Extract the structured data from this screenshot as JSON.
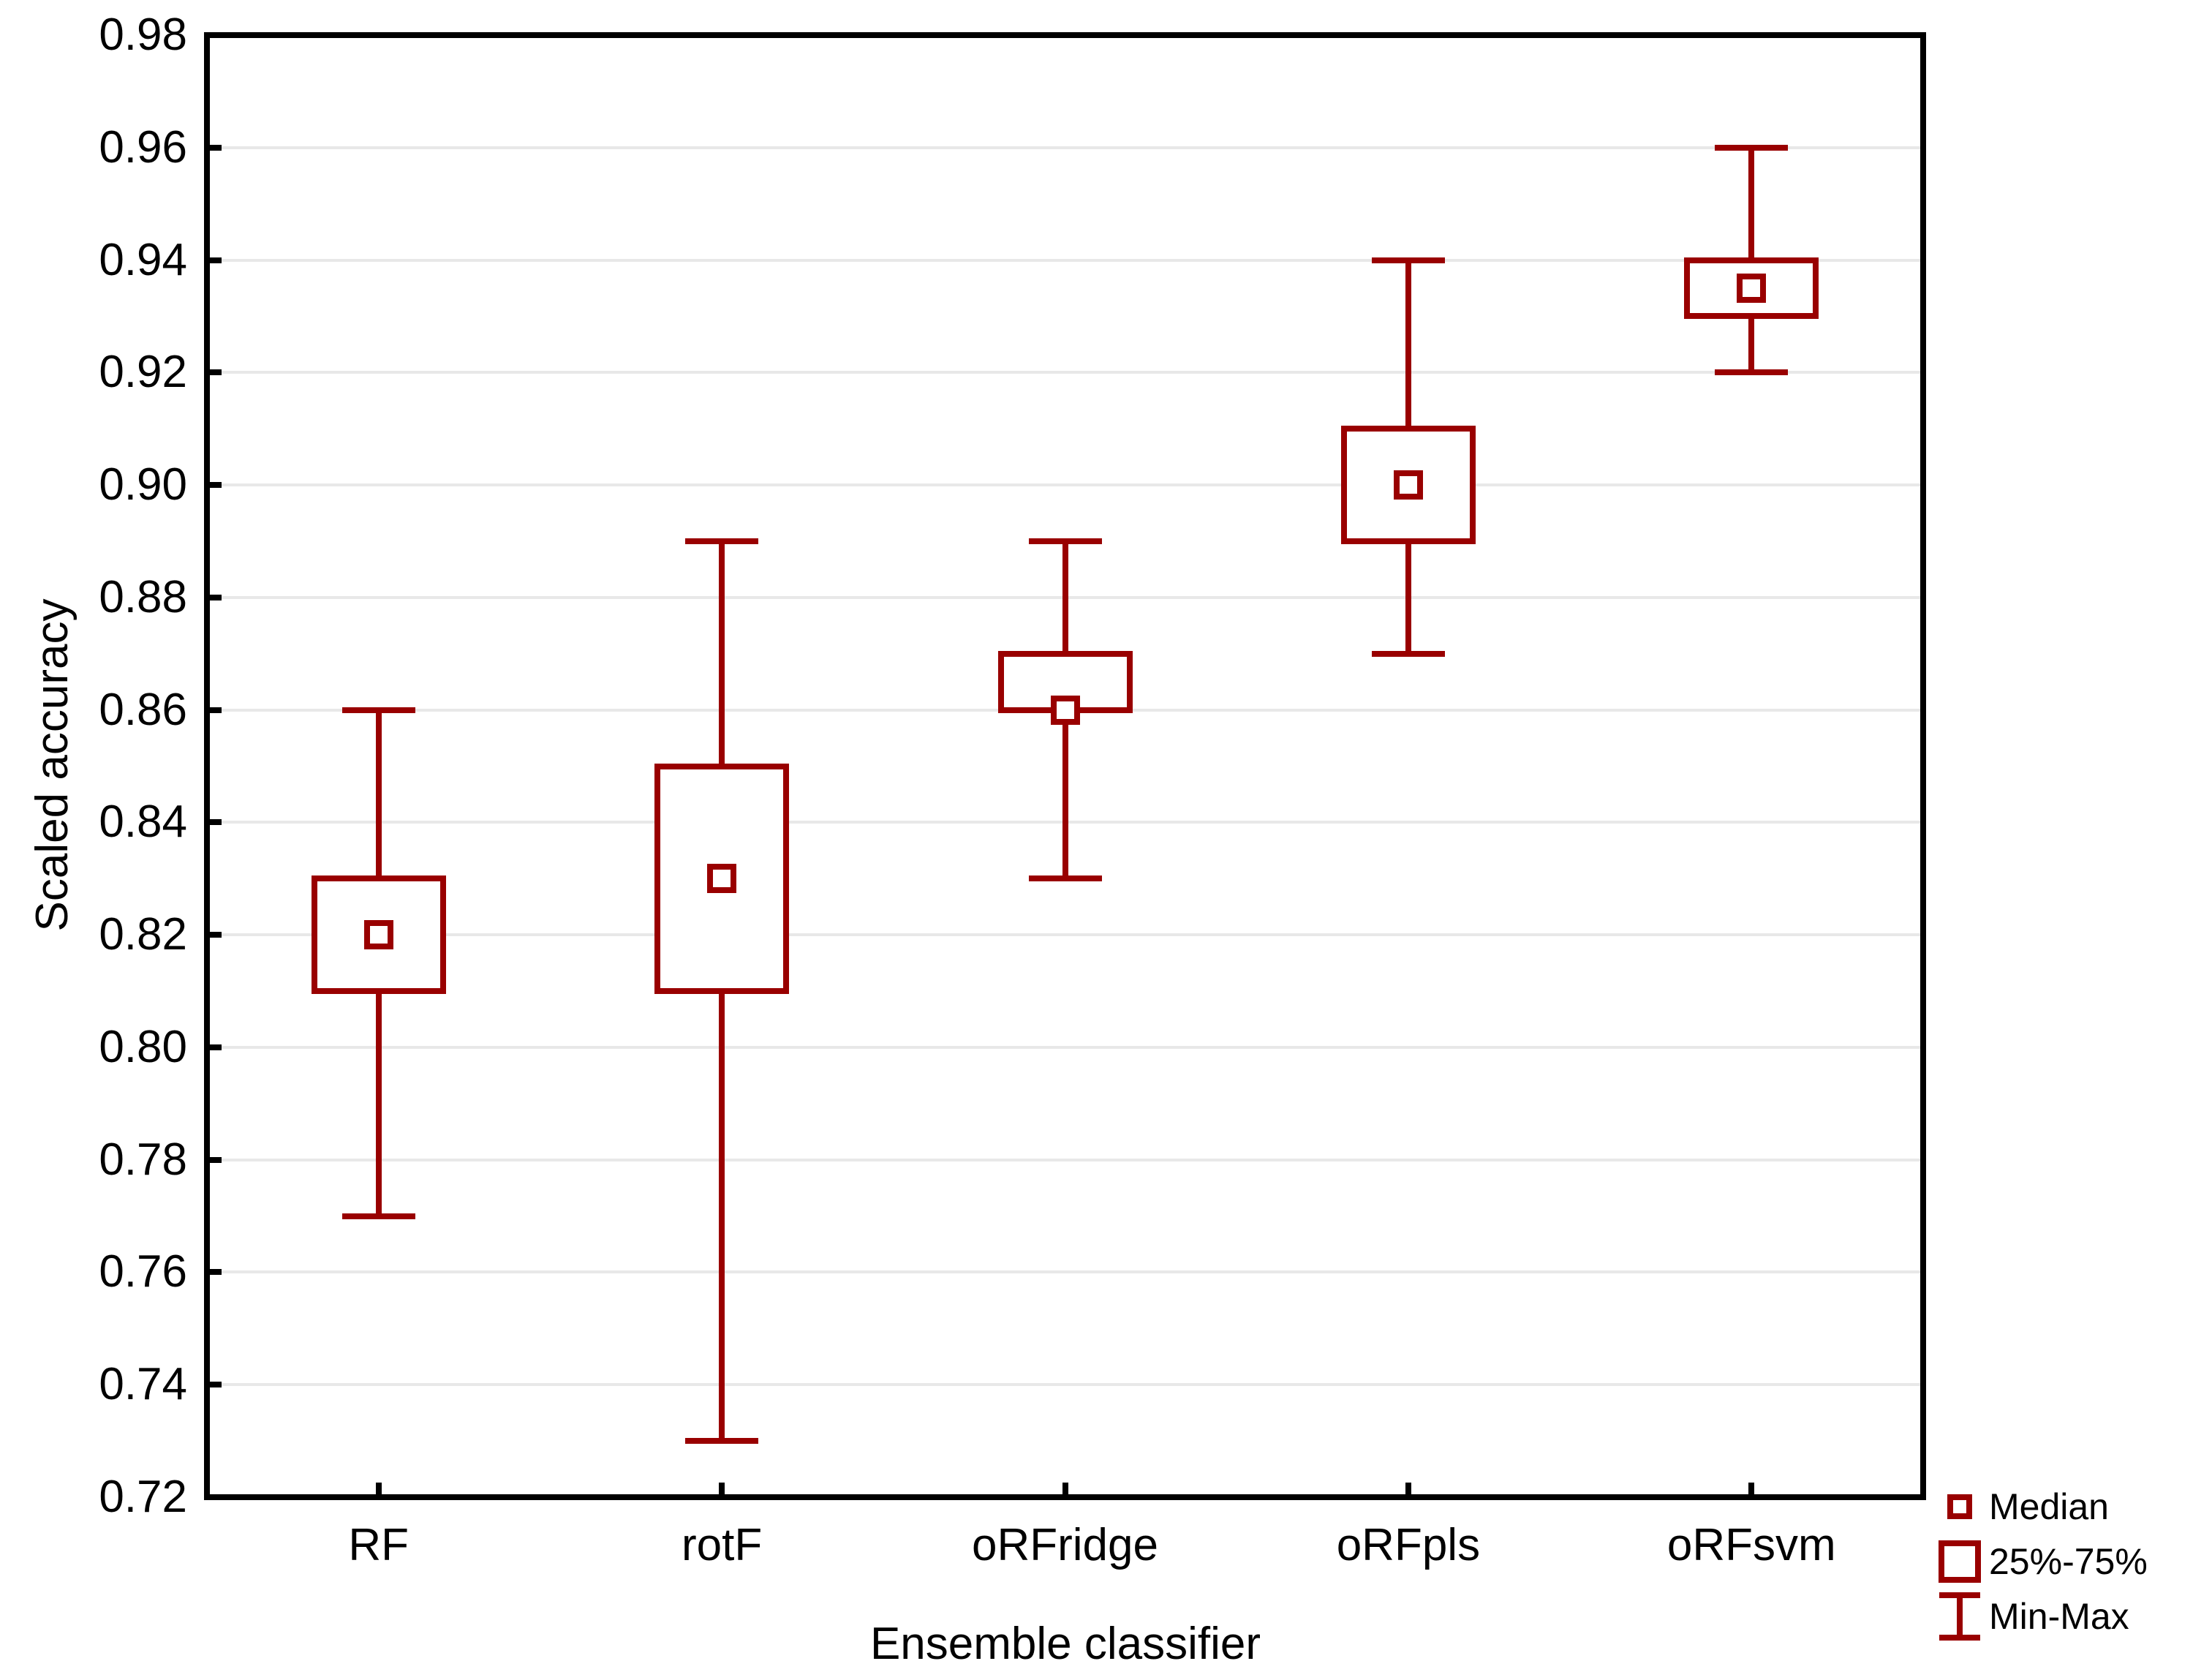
{
  "chart_data": {
    "type": "box",
    "xlabel": "Ensemble classifier",
    "ylabel": "Scaled accuracy",
    "categories": [
      "RF",
      "rotF",
      "oRFridge",
      "oRFpls",
      "oRFsvm"
    ],
    "series": [
      {
        "name": "RF",
        "min": 0.77,
        "q1": 0.81,
        "median": 0.82,
        "q3": 0.83,
        "max": 0.86
      },
      {
        "name": "rotF",
        "min": 0.73,
        "q1": 0.81,
        "median": 0.83,
        "q3": 0.85,
        "max": 0.89
      },
      {
        "name": "oRFridge",
        "min": 0.83,
        "q1": 0.86,
        "median": 0.86,
        "q3": 0.87,
        "max": 0.89
      },
      {
        "name": "oRFpls",
        "min": 0.87,
        "q1": 0.89,
        "median": 0.9,
        "q3": 0.91,
        "max": 0.94
      },
      {
        "name": "oRFsvm",
        "min": 0.92,
        "q1": 0.93,
        "median": 0.935,
        "q3": 0.94,
        "max": 0.96
      }
    ],
    "ylim": [
      0.72,
      0.98
    ],
    "ytick_step": 0.02,
    "ytick_labels": [
      "0.72",
      "0.74",
      "0.76",
      "0.78",
      "0.80",
      "0.82",
      "0.84",
      "0.86",
      "0.88",
      "0.90",
      "0.92",
      "0.94",
      "0.96",
      "0.98"
    ],
    "grid": "horizontal",
    "legend_position": "bottom-right"
  },
  "legend": {
    "items": [
      {
        "symbol": "median-square",
        "label": "Median"
      },
      {
        "symbol": "iqr-box",
        "label": "25%-75%"
      },
      {
        "symbol": "min-max-whisker",
        "label": "Min-Max"
      }
    ]
  },
  "colors": {
    "series": "#990000",
    "grid": "#e8e8e8",
    "axis": "#000000",
    "text": "#000000",
    "background": "#ffffff"
  }
}
